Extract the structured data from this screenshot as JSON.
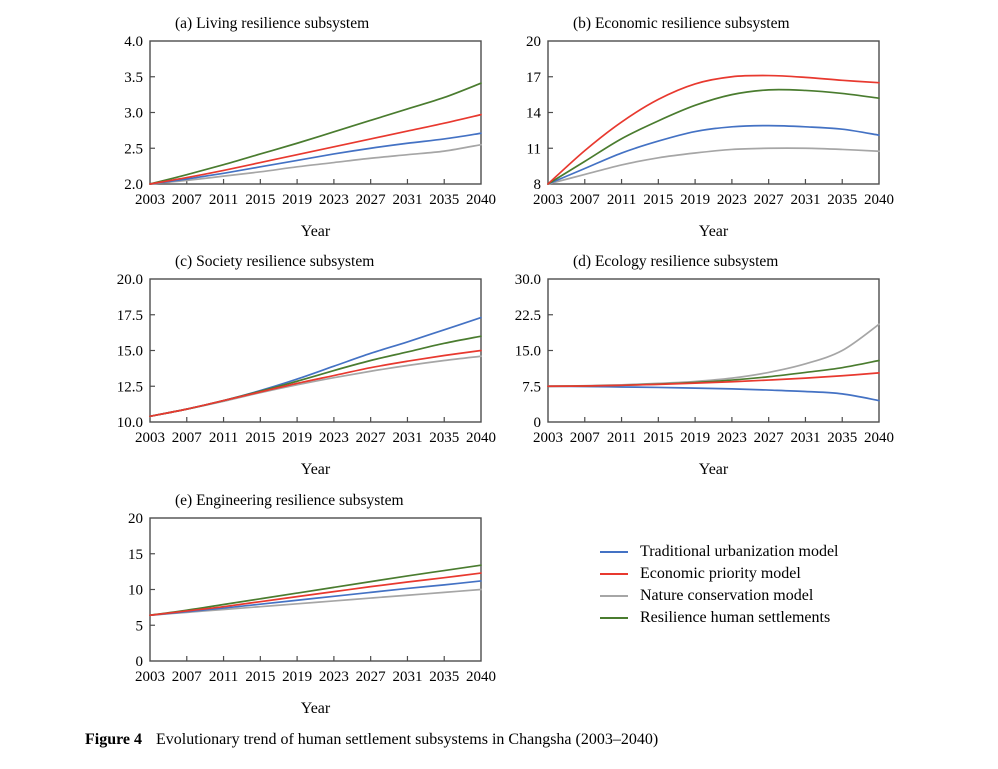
{
  "figure": {
    "caption_label": "Figure 4",
    "caption_text": "Evolutionary trend of human settlement subsystems in Changsha (2003–2040)"
  },
  "colors": {
    "blue": "#4472c4",
    "red": "#e8392f",
    "gray": "#a6a6a6",
    "green": "#4a7c2f",
    "axis": "#4d4d4d",
    "text": "#000000"
  },
  "legend": {
    "position": "bottom-right",
    "items": [
      {
        "label": "Traditional urbanization model",
        "color": "#4472c4"
      },
      {
        "label": "Economic priority model",
        "color": "#e8392f"
      },
      {
        "label": "Nature conservation model",
        "color": "#a6a6a6"
      },
      {
        "label": "Resilience human settlements",
        "color": "#4a7c2f"
      }
    ]
  },
  "chart_data": [
    {
      "type": "line",
      "panel": "a",
      "title": "(a) Living resilience subsystem",
      "xlabel": "Year",
      "x": [
        2003,
        2007,
        2011,
        2015,
        2019,
        2023,
        2027,
        2031,
        2035,
        2040
      ],
      "ylim": [
        2.0,
        4.0
      ],
      "yticks": [
        {
          "label": "2.0",
          "value": 2.0
        },
        {
          "label": "2.5",
          "value": 2.5
        },
        {
          "label": "3.0",
          "value": 3.0
        },
        {
          "label": "3.5",
          "value": 3.5
        },
        {
          "label": "4.0",
          "value": 4.0
        }
      ],
      "grid": false,
      "series": [
        {
          "name": "Nature conservation model",
          "color": "#a6a6a6",
          "values": [
            2.0,
            2.05,
            2.11,
            2.17,
            2.24,
            2.3,
            2.36,
            2.41,
            2.46,
            2.55
          ]
        },
        {
          "name": "Traditional urbanization model",
          "color": "#4472c4",
          "values": [
            2.0,
            2.07,
            2.15,
            2.24,
            2.33,
            2.42,
            2.5,
            2.57,
            2.63,
            2.71
          ]
        },
        {
          "name": "Resilience human settlements",
          "color": "#4a7c2f",
          "values": [
            2.0,
            2.13,
            2.27,
            2.42,
            2.57,
            2.73,
            2.89,
            3.05,
            3.21,
            3.41
          ]
        },
        {
          "name": "Economic priority model",
          "color": "#e8392f",
          "values": [
            2.0,
            2.09,
            2.19,
            2.3,
            2.41,
            2.52,
            2.63,
            2.74,
            2.85,
            2.97
          ]
        }
      ]
    },
    {
      "type": "line",
      "panel": "b",
      "title": "(b) Economic resilience subsystem",
      "xlabel": "Year",
      "x": [
        2003,
        2007,
        2011,
        2015,
        2019,
        2023,
        2027,
        2031,
        2035,
        2040
      ],
      "ylim": [
        8,
        20
      ],
      "yticks": [
        {
          "label": "8",
          "value": 8
        },
        {
          "label": "11",
          "value": 11
        },
        {
          "label": "14",
          "value": 14
        },
        {
          "label": "17",
          "value": 17
        },
        {
          "label": "20",
          "value": 20
        }
      ],
      "grid": false,
      "series": [
        {
          "name": "Nature conservation model",
          "color": "#a6a6a6",
          "values": [
            8.0,
            8.8,
            9.6,
            10.2,
            10.6,
            10.9,
            11.0,
            11.0,
            10.9,
            10.75
          ]
        },
        {
          "name": "Traditional urbanization model",
          "color": "#4472c4",
          "values": [
            8.0,
            9.3,
            10.6,
            11.6,
            12.4,
            12.8,
            12.9,
            12.8,
            12.6,
            12.1
          ]
        },
        {
          "name": "Resilience human settlements",
          "color": "#4a7c2f",
          "values": [
            8.0,
            9.9,
            11.8,
            13.3,
            14.6,
            15.5,
            15.9,
            15.85,
            15.6,
            15.2
          ]
        },
        {
          "name": "Economic priority model",
          "color": "#e8392f",
          "values": [
            8.0,
            10.8,
            13.2,
            15.1,
            16.4,
            17.0,
            17.1,
            16.95,
            16.7,
            16.5
          ]
        }
      ]
    },
    {
      "type": "line",
      "panel": "c",
      "title": "(c) Society resilience subsystem",
      "xlabel": "Year",
      "x": [
        2003,
        2007,
        2011,
        2015,
        2019,
        2023,
        2027,
        2031,
        2035,
        2040
      ],
      "ylim": [
        10.0,
        20.0
      ],
      "yticks": [
        {
          "label": "10.0",
          "value": 10.0
        },
        {
          "label": "12.5",
          "value": 12.5
        },
        {
          "label": "15.0",
          "value": 15.0
        },
        {
          "label": "17.5",
          "value": 17.5
        },
        {
          "label": "20.0",
          "value": 20.0
        }
      ],
      "grid": false,
      "series": [
        {
          "name": "Nature conservation model",
          "color": "#a6a6a6",
          "values": [
            10.4,
            10.9,
            11.45,
            12.05,
            12.6,
            13.1,
            13.55,
            13.95,
            14.3,
            14.6
          ]
        },
        {
          "name": "Traditional urbanization model",
          "color": "#4472c4",
          "values": [
            10.4,
            10.9,
            11.5,
            12.2,
            13.0,
            13.9,
            14.8,
            15.6,
            16.45,
            17.3
          ]
        },
        {
          "name": "Resilience human settlements",
          "color": "#4a7c2f",
          "values": [
            10.4,
            10.9,
            11.5,
            12.15,
            12.85,
            13.6,
            14.3,
            14.9,
            15.5,
            16.0
          ]
        },
        {
          "name": "Economic priority model",
          "color": "#e8392f",
          "values": [
            10.4,
            10.9,
            11.5,
            12.1,
            12.7,
            13.25,
            13.8,
            14.25,
            14.65,
            15.0
          ]
        }
      ]
    },
    {
      "type": "line",
      "panel": "d",
      "title": "(d) Ecology resilience subsystem",
      "xlabel": "Year",
      "x": [
        2003,
        2007,
        2011,
        2015,
        2019,
        2023,
        2027,
        2031,
        2035,
        2040
      ],
      "ylim": [
        0,
        30.0
      ],
      "yticks": [
        {
          "label": "0",
          "value": 0
        },
        {
          "label": "7.5",
          "value": 7.5
        },
        {
          "label": "15.0",
          "value": 15.0
        },
        {
          "label": "22.5",
          "value": 22.5
        },
        {
          "label": "30.0",
          "value": 30.0
        }
      ],
      "grid": false,
      "series": [
        {
          "name": "Nature conservation model",
          "color": "#a6a6a6",
          "values": [
            7.5,
            7.6,
            7.8,
            8.1,
            8.5,
            9.2,
            10.4,
            12.2,
            15.0,
            20.5
          ]
        },
        {
          "name": "Traditional urbanization model",
          "color": "#4472c4",
          "values": [
            7.5,
            7.45,
            7.35,
            7.25,
            7.1,
            6.95,
            6.7,
            6.4,
            5.9,
            4.5
          ]
        },
        {
          "name": "Resilience human settlements",
          "color": "#4a7c2f",
          "values": [
            7.5,
            7.55,
            7.7,
            7.95,
            8.3,
            8.8,
            9.5,
            10.4,
            11.4,
            12.9
          ]
        },
        {
          "name": "Economic priority model",
          "color": "#e8392f",
          "values": [
            7.5,
            7.55,
            7.7,
            7.9,
            8.15,
            8.45,
            8.8,
            9.2,
            9.7,
            10.3
          ]
        }
      ]
    },
    {
      "type": "line",
      "panel": "e",
      "title": "(e) Engineering resilience subsystem",
      "xlabel": "Year",
      "x": [
        2003,
        2007,
        2011,
        2015,
        2019,
        2023,
        2027,
        2031,
        2035,
        2040
      ],
      "ylim": [
        0,
        20
      ],
      "yticks": [
        {
          "label": "0",
          "value": 0
        },
        {
          "label": "5",
          "value": 5
        },
        {
          "label": "10",
          "value": 10
        },
        {
          "label": "15",
          "value": 15
        },
        {
          "label": "20",
          "value": 20
        }
      ],
      "grid": false,
      "series": [
        {
          "name": "Nature conservation model",
          "color": "#a6a6a6",
          "values": [
            6.4,
            6.8,
            7.2,
            7.6,
            8.0,
            8.4,
            8.8,
            9.2,
            9.6,
            10.0
          ]
        },
        {
          "name": "Traditional urbanization model",
          "color": "#4472c4",
          "values": [
            6.4,
            6.9,
            7.4,
            7.95,
            8.5,
            9.05,
            9.6,
            10.15,
            10.65,
            11.2
          ]
        },
        {
          "name": "Resilience human settlements",
          "color": "#4a7c2f",
          "values": [
            6.4,
            7.1,
            7.9,
            8.7,
            9.5,
            10.3,
            11.1,
            11.9,
            12.65,
            13.4
          ]
        },
        {
          "name": "Economic priority model",
          "color": "#e8392f",
          "values": [
            6.4,
            7.0,
            7.6,
            8.3,
            9.0,
            9.7,
            10.4,
            11.05,
            11.65,
            12.3
          ]
        }
      ]
    }
  ]
}
